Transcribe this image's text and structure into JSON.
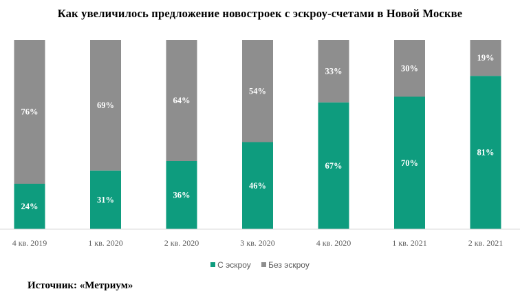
{
  "chart_data": {
    "type": "bar",
    "stacked": true,
    "title": "Как увеличилось предложение новостроек  с эскроу-счетами  в Новой  Москве",
    "categories": [
      "4 кв. 2019",
      "1 кв. 2020",
      "2 кв. 2020",
      "3 кв. 2020",
      "4 кв. 2020",
      "1 кв. 2021",
      "2 кв. 2021"
    ],
    "series": [
      {
        "name": "С эскроу",
        "color": "#0e9c7e",
        "values": [
          24,
          31,
          36,
          46,
          67,
          70,
          81
        ],
        "labels": [
          "24%",
          "31%",
          "36%",
          "46%",
          "67%",
          "70%",
          "81%"
        ]
      },
      {
        "name": "Без эскроу",
        "color": "#8e8e8e",
        "values": [
          76,
          69,
          64,
          54,
          33,
          30,
          19
        ],
        "labels": [
          "76%",
          "69%",
          "64%",
          "54%",
          "33%",
          "30%",
          "19%"
        ]
      }
    ],
    "ylim": [
      0,
      100
    ],
    "grid": false,
    "legend": "bottom",
    "xlabel": "",
    "ylabel": ""
  },
  "source": "Источник: «Метриум»"
}
